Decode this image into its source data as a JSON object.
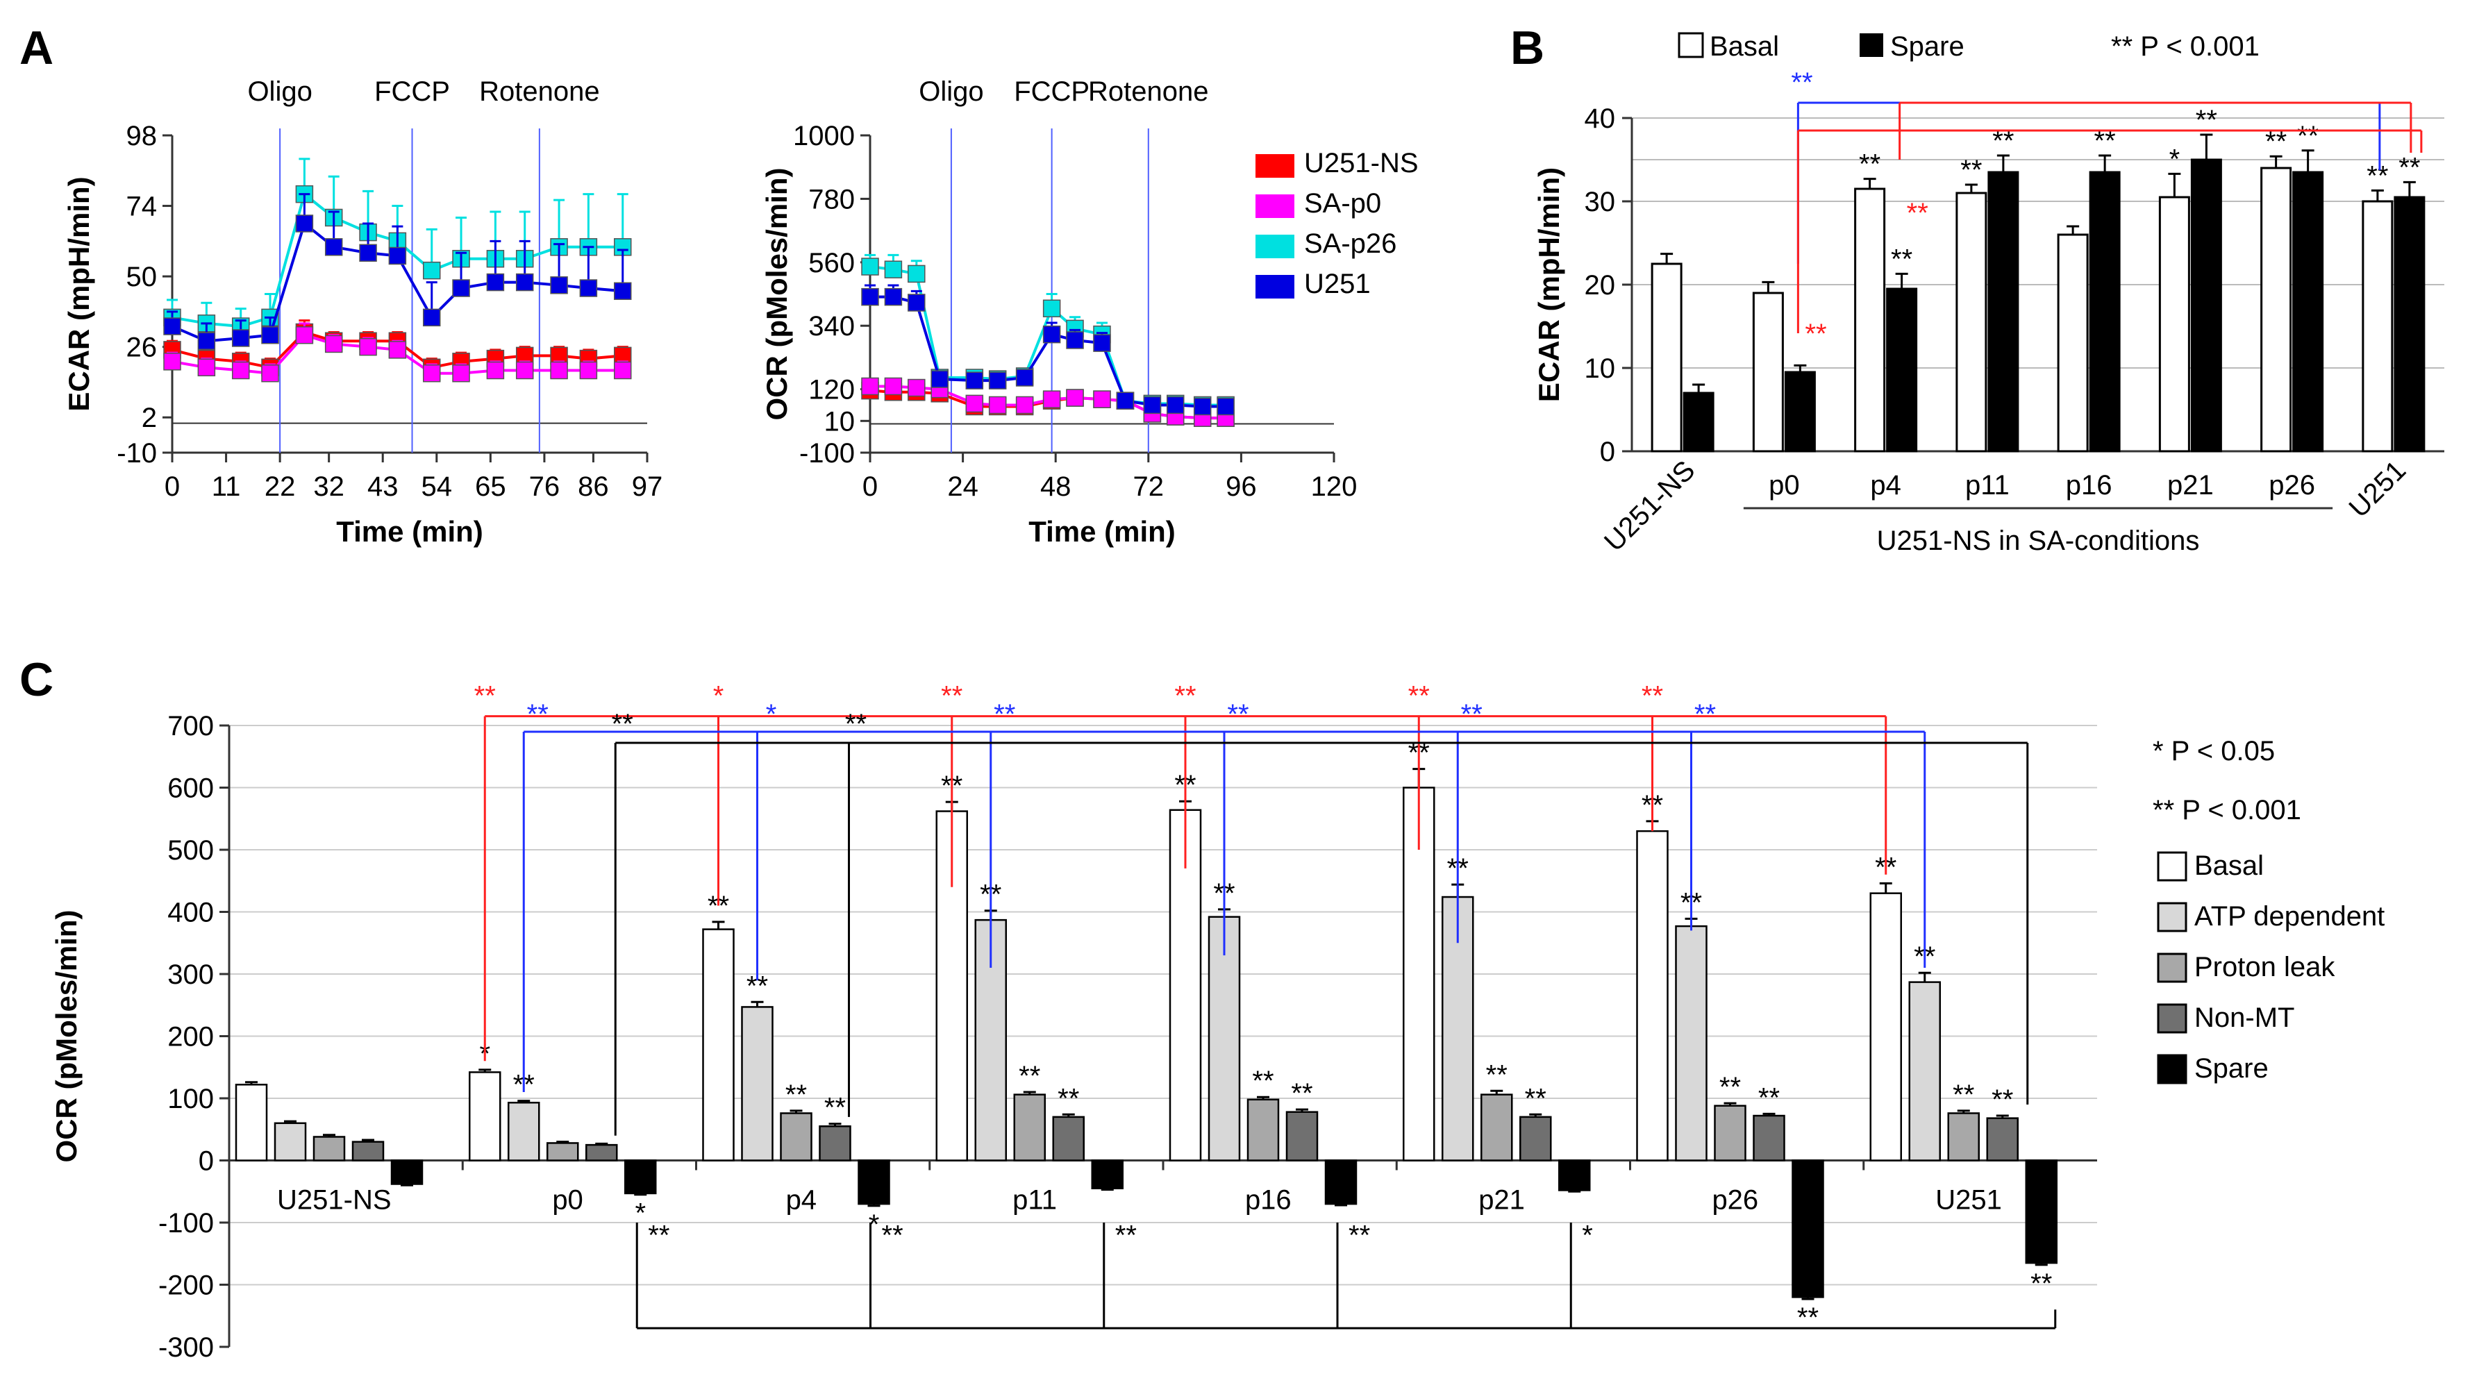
{
  "colors": {
    "U251-NS": "#ff0000",
    "SA-p0": "#ff00ff",
    "SA-p26": "#00e0e0",
    "U251": "#0000e0",
    "basal": "#ffffff",
    "spare": "#000000",
    "atp": "#d8d8d8",
    "proton": "#a8a8a8",
    "nonmt": "#707070",
    "red_sig": "#ff2020",
    "blue_sig": "#2030ff"
  },
  "chart_data": [
    {
      "panel": "A",
      "id": "ecar_time",
      "type": "line",
      "panel_label": "A",
      "xlabel": "Time (min)",
      "ylabel": "ECAR (mpH/min)",
      "xticks": [
        "0",
        "11",
        "22",
        "32",
        "43",
        "54",
        "65",
        "76",
        "86",
        "97"
      ],
      "yticks": [
        "-10",
        "2",
        "26",
        "50",
        "74",
        "98"
      ],
      "xlim": [
        0,
        97
      ],
      "ylim": [
        -10,
        98
      ],
      "injections": [
        {
          "label": "Oligo",
          "x": 22
        },
        {
          "label": "FCCP",
          "x": 49
        },
        {
          "label": "Rotenone",
          "x": 75
        }
      ],
      "x": [
        0,
        7,
        14,
        20,
        27,
        33,
        40,
        46,
        53,
        59,
        66,
        72,
        79,
        85,
        92
      ],
      "series": [
        {
          "name": "U251-NS",
          "values": [
            25,
            22,
            21,
            19,
            31,
            28,
            28,
            28,
            19,
            21,
            22,
            23,
            23,
            22,
            23
          ],
          "err": [
            3,
            3,
            3,
            3,
            4,
            3,
            3,
            3,
            3,
            3,
            3,
            3,
            3,
            3,
            3
          ]
        },
        {
          "name": "SA-p0",
          "values": [
            21,
            19,
            18,
            17,
            30,
            27,
            26,
            25,
            17,
            17,
            18,
            18,
            18,
            18,
            18
          ],
          "err": [
            3,
            3,
            3,
            3,
            4,
            3,
            3,
            3,
            3,
            3,
            3,
            3,
            3,
            3,
            3
          ]
        },
        {
          "name": "SA-p26",
          "values": [
            36,
            34,
            33,
            36,
            78,
            70,
            65,
            62,
            52,
            56,
            56,
            56,
            60,
            60,
            60
          ],
          "err": [
            6,
            7,
            6,
            8,
            12,
            14,
            14,
            12,
            14,
            14,
            16,
            16,
            16,
            18,
            18
          ]
        },
        {
          "name": "U251",
          "values": [
            33,
            28,
            29,
            30,
            68,
            60,
            58,
            57,
            36,
            46,
            48,
            48,
            47,
            46,
            45
          ],
          "err": [
            5,
            6,
            6,
            6,
            10,
            12,
            10,
            10,
            12,
            12,
            14,
            14,
            14,
            14,
            14
          ]
        }
      ]
    },
    {
      "panel": "A",
      "id": "ocr_time",
      "type": "line",
      "xlabel": "Time (min)",
      "ylabel": "OCR (pMoles/min)",
      "xticks": [
        "0",
        "24",
        "48",
        "72",
        "96",
        "120"
      ],
      "yticks": [
        "-100",
        "10",
        "120",
        "340",
        "560",
        "780",
        "1000"
      ],
      "xlim": [
        0,
        120
      ],
      "ylim": [
        -100,
        1000
      ],
      "injections": [
        {
          "label": "Oligo",
          "x": 21
        },
        {
          "label": "FCCP",
          "x": 47
        },
        {
          "label": "Rotenone",
          "x": 72
        }
      ],
      "x": [
        0,
        6,
        12,
        18,
        27,
        33,
        40,
        47,
        53,
        60,
        66,
        73,
        79,
        86,
        92
      ],
      "series": [
        {
          "name": "U251-NS",
          "values": [
            115,
            110,
            110,
            105,
            60,
            60,
            60,
            80,
            90,
            85,
            80,
            35,
            25,
            20,
            20
          ],
          "err": [
            10,
            10,
            10,
            10,
            8,
            8,
            8,
            8,
            10,
            10,
            10,
            6,
            6,
            6,
            6
          ]
        },
        {
          "name": "SA-p0",
          "values": [
            130,
            130,
            125,
            120,
            70,
            65,
            65,
            85,
            90,
            85,
            80,
            35,
            25,
            20,
            20
          ],
          "err": [
            10,
            10,
            10,
            10,
            8,
            8,
            8,
            8,
            10,
            10,
            10,
            6,
            6,
            6,
            6
          ]
        },
        {
          "name": "SA-p26",
          "values": [
            545,
            535,
            520,
            160,
            160,
            155,
            165,
            400,
            330,
            310,
            80,
            70,
            70,
            65,
            65
          ],
          "err": [
            40,
            50,
            45,
            20,
            20,
            20,
            20,
            50,
            40,
            40,
            15,
            12,
            12,
            12,
            12
          ]
        },
        {
          "name": "U251",
          "values": [
            440,
            440,
            420,
            155,
            150,
            150,
            160,
            310,
            290,
            280,
            80,
            65,
            65,
            60,
            60
          ],
          "err": [
            40,
            40,
            40,
            20,
            20,
            20,
            20,
            40,
            35,
            35,
            15,
            12,
            12,
            12,
            12
          ]
        }
      ],
      "legend": [
        "U251-NS",
        "SA-p0",
        "SA-p26",
        "U251"
      ]
    },
    {
      "panel": "B",
      "id": "ecar_bar",
      "type": "bar",
      "panel_label": "B",
      "ylabel": "ECAR (mpH/min)",
      "yticks": [
        "0",
        "10",
        "20",
        "30",
        "40"
      ],
      "ylim": [
        0,
        40
      ],
      "categories": [
        "U251-NS",
        "p0",
        "p4",
        "p11",
        "p16",
        "p21",
        "p26",
        "U251"
      ],
      "group_label": "U251-NS in SA-conditions",
      "legend": [
        "Basal",
        "Spare"
      ],
      "sig_note": "** P < 0.001",
      "series": [
        {
          "name": "Basal",
          "values": [
            22.5,
            19,
            31.5,
            31,
            26,
            30.5,
            34,
            30
          ],
          "err": [
            1.2,
            1.3,
            1.2,
            1,
            1,
            2.8,
            1.4,
            1.3
          ],
          "stars": [
            "",
            "",
            "**",
            "**",
            "",
            "*",
            "**",
            "**"
          ]
        },
        {
          "name": "Spare",
          "values": [
            7,
            9.5,
            19.5,
            33.5,
            33.5,
            35,
            33.5,
            30.5
          ],
          "err": [
            1,
            0.8,
            1.8,
            2,
            2,
            3,
            2.6,
            1.8
          ],
          "stars": [
            "",
            "",
            "**",
            "**",
            "**",
            "**",
            "**",
            "**"
          ]
        }
      ],
      "brackets": [
        {
          "stars": "**",
          "color": "blue"
        },
        {
          "stars": "**",
          "color": "red"
        },
        {
          "stars": "**",
          "color": "red"
        }
      ]
    },
    {
      "panel": "C",
      "id": "ocr_bar",
      "type": "bar",
      "panel_label": "C",
      "ylabel": "OCR (pMoles/min)",
      "yticks": [
        "-300",
        "-200",
        "-100",
        "0",
        "100",
        "200",
        "300",
        "400",
        "500",
        "600",
        "700"
      ],
      "ylim": [
        -300,
        700
      ],
      "categories": [
        "U251-NS",
        "p0",
        "p4",
        "p11",
        "p16",
        "p21",
        "p26",
        "U251"
      ],
      "legend": [
        "Basal",
        "ATP dependent",
        "Proton leak",
        "Non-MT",
        "Spare"
      ],
      "sig_notes": [
        "* P < 0.05",
        "** P < 0.001"
      ],
      "series": [
        {
          "name": "Basal",
          "values": [
            122,
            142,
            372,
            562,
            564,
            600,
            530,
            430
          ],
          "err": [
            4,
            4,
            12,
            15,
            14,
            30,
            16,
            16
          ],
          "stars": [
            "",
            "*",
            "**",
            "**",
            "**",
            "**",
            "**",
            "**"
          ]
        },
        {
          "name": "ATP dependent",
          "values": [
            60,
            93,
            247,
            387,
            392,
            424,
            377,
            287
          ],
          "err": [
            3,
            3,
            8,
            15,
            12,
            20,
            12,
            15
          ],
          "stars": [
            "",
            "**",
            "**",
            "**",
            "**",
            "**",
            "**",
            "**"
          ]
        },
        {
          "name": "Proton leak",
          "values": [
            38,
            28,
            76,
            106,
            98,
            106,
            88,
            76
          ],
          "err": [
            3,
            2,
            4,
            4,
            4,
            6,
            4,
            4
          ],
          "stars": [
            "",
            "",
            "**",
            "**",
            "**",
            "**",
            "**",
            "**"
          ]
        },
        {
          "name": "Non-MT",
          "values": [
            30,
            25,
            55,
            70,
            78,
            70,
            72,
            68
          ],
          "err": [
            3,
            2,
            4,
            4,
            4,
            4,
            3,
            4
          ],
          "stars": [
            "",
            "",
            "**",
            "**",
            "**",
            "**",
            "**",
            "**"
          ]
        },
        {
          "name": "Spare",
          "values": [
            -38,
            -53,
            -70,
            -45,
            -70,
            -48,
            -220,
            -165
          ],
          "err": [
            2,
            2,
            3,
            2,
            2,
            2,
            3,
            3
          ],
          "stars": [
            "",
            "*",
            "*",
            "",
            "",
            "",
            "**",
            "**"
          ]
        }
      ],
      "red_brackets": [
        "**",
        "*",
        "**",
        "**",
        "**",
        "**"
      ],
      "blue_brackets": [
        "**",
        "*",
        "**",
        "**",
        "**",
        "**"
      ],
      "black_brackets": [
        "**",
        "**"
      ],
      "bottom_brackets": [
        "**",
        "**",
        "**",
        "**",
        "*"
      ]
    }
  ]
}
